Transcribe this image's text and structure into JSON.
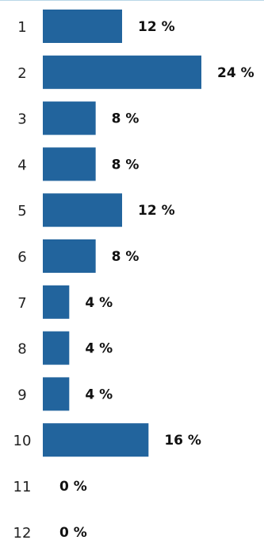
{
  "chart_data": {
    "type": "bar",
    "orientation": "horizontal",
    "categories": [
      "1",
      "2",
      "3",
      "4",
      "5",
      "6",
      "7",
      "8",
      "9",
      "10",
      "11",
      "12"
    ],
    "values": [
      12,
      24,
      8,
      8,
      12,
      8,
      4,
      4,
      4,
      16,
      0,
      0
    ],
    "value_labels": [
      "12 %",
      "24 %",
      "8 %",
      "8 %",
      "12 %",
      "8 %",
      "4 %",
      "4 %",
      "4 %",
      "16 %",
      "0 %",
      "0 %"
    ],
    "value_unit": "%",
    "title": "",
    "xlabel": "",
    "ylabel": "",
    "xlim": [
      0,
      24
    ],
    "grid": false,
    "legend": "none",
    "bar_color": "#22649d"
  }
}
